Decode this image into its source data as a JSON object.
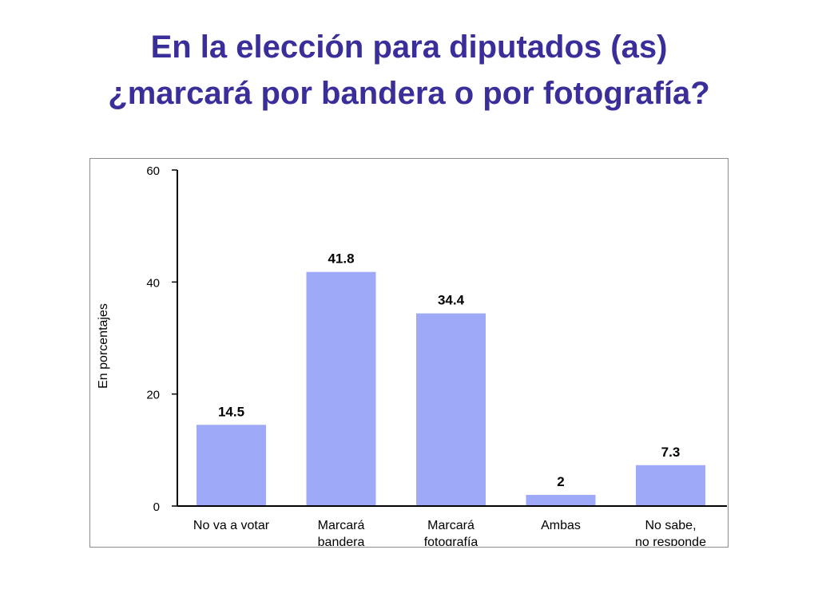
{
  "slide": {
    "title_line1": "En la elección para diputados (as)",
    "title_line2": "¿marcará por bandera o por fotografía?"
  },
  "colors": {
    "title": "#3a2f9a",
    "bar": "#9eaaf7",
    "frame": "#8c8c8c"
  },
  "chart_data": {
    "type": "bar",
    "title": "",
    "xlabel": "",
    "ylabel": "En porcentajes",
    "ylim": [
      0,
      60
    ],
    "yticks": [
      0,
      20,
      40,
      60
    ],
    "grid": false,
    "legend": "none",
    "categories": [
      [
        "No va a votar"
      ],
      [
        "Marcará",
        "bandera"
      ],
      [
        "Marcará",
        "fotografía"
      ],
      [
        "Ambas"
      ],
      [
        "No sabe,",
        "no responde"
      ]
    ],
    "values": [
      14.5,
      41.8,
      34.4,
      2,
      7.3
    ],
    "value_labels": [
      "14.5",
      "41.8",
      "34.4",
      "2",
      "7.3"
    ]
  }
}
